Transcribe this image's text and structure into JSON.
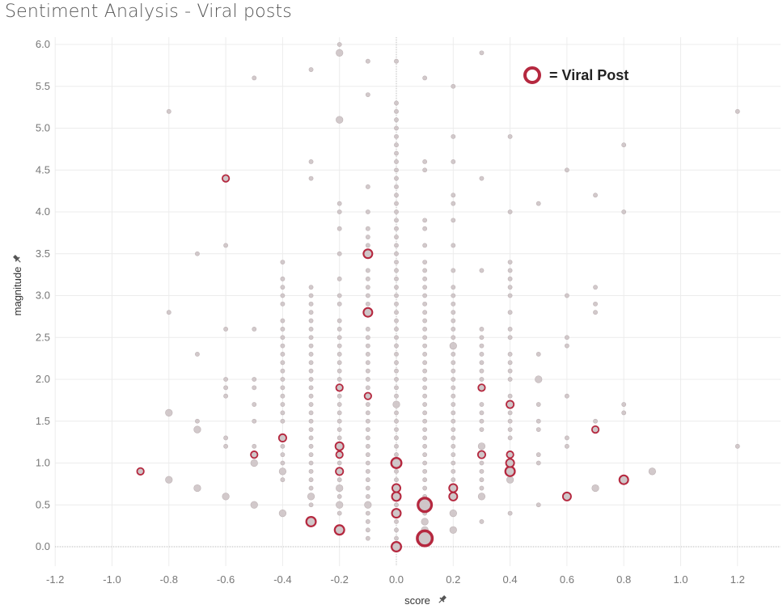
{
  "title": "Sentiment Analysis - Viral posts",
  "chart_data": {
    "type": "scatter",
    "title": "Sentiment Analysis - Viral posts",
    "xlabel": "score",
    "ylabel": "magnitude",
    "xlim": [
      -1.25,
      1.35
    ],
    "ylim": [
      -0.05,
      6.05
    ],
    "x_ticks": [
      "-1.2",
      "-1.0",
      "-0.8",
      "-0.6",
      "-0.4",
      "-0.2",
      "0.0",
      "0.2",
      "0.4",
      "0.6",
      "0.8",
      "1.0",
      "1.2"
    ],
    "y_ticks": [
      "0.0",
      "0.5",
      "1.0",
      "1.5",
      "2.0",
      "2.5",
      "3.0",
      "3.5",
      "4.0",
      "4.5",
      "5.0",
      "5.5",
      "6.0"
    ],
    "grid": true,
    "legend": {
      "placement": "top-right",
      "label": "= Viral Post"
    },
    "colors": {
      "regular": "#cdc3c5",
      "viral": "#b5283f",
      "grid": "#ececec",
      "zero_line": "#bcbcbc"
    },
    "columns": [
      {
        "x": -0.9,
        "y": [
          0.9
        ]
      },
      {
        "x": -0.8,
        "y": [
          0.8,
          1.6,
          2.8,
          5.2
        ]
      },
      {
        "x": -0.7,
        "y": [
          0.7,
          1.4,
          1.5,
          2.3,
          3.5
        ]
      },
      {
        "x": -0.6,
        "y": [
          0.6,
          1.2,
          1.3,
          1.8,
          1.9,
          2.0,
          2.6,
          3.6,
          4.4
        ]
      },
      {
        "x": -0.5,
        "y": [
          0.5,
          1.0,
          1.1,
          1.2,
          1.5,
          1.7,
          1.9,
          2.0,
          2.6,
          5.6
        ]
      },
      {
        "x": -0.4,
        "y": [
          0.4,
          0.8,
          0.9,
          1.0,
          1.1,
          1.2,
          1.3,
          1.5,
          1.6,
          1.7,
          1.8,
          1.9,
          2.0,
          2.1,
          2.2,
          2.3,
          2.4,
          2.5,
          2.6,
          2.7,
          2.9,
          3.0,
          3.1,
          3.2,
          3.4
        ]
      },
      {
        "x": -0.3,
        "y": [
          0.3,
          0.5,
          0.6,
          0.7,
          0.8,
          0.9,
          1.0,
          1.1,
          1.2,
          1.3,
          1.4,
          1.5,
          1.6,
          1.7,
          1.8,
          1.9,
          2.0,
          2.1,
          2.2,
          2.3,
          2.4,
          2.5,
          2.6,
          2.7,
          2.8,
          2.9,
          3.0,
          3.1,
          4.4,
          4.6,
          5.7
        ]
      },
      {
        "x": -0.2,
        "y": [
          0.2,
          0.4,
          0.5,
          0.6,
          0.7,
          0.8,
          0.9,
          1.0,
          1.1,
          1.2,
          1.3,
          1.4,
          1.5,
          1.6,
          1.7,
          1.8,
          1.9,
          2.0,
          2.1,
          2.2,
          2.3,
          2.4,
          2.5,
          2.6,
          2.7,
          2.9,
          3.0,
          3.2,
          3.5,
          3.8,
          4.0,
          4.1,
          5.1,
          5.9,
          6.0
        ]
      },
      {
        "x": -0.1,
        "y": [
          0.1,
          0.2,
          0.3,
          0.4,
          0.5,
          0.6,
          0.7,
          0.8,
          0.9,
          1.0,
          1.1,
          1.2,
          1.3,
          1.4,
          1.5,
          1.6,
          1.7,
          1.8,
          1.9,
          2.0,
          2.1,
          2.2,
          2.3,
          2.4,
          2.5,
          2.6,
          2.8,
          2.9,
          3.0,
          3.1,
          3.2,
          3.3,
          3.5,
          3.6,
          3.7,
          3.8,
          4.0,
          4.3,
          5.4,
          5.8
        ]
      },
      {
        "x": 0.0,
        "y": [
          0.0,
          0.1,
          0.2,
          0.3,
          0.4,
          0.5,
          0.6,
          0.7,
          0.8,
          0.9,
          1.0,
          1.1,
          1.2,
          1.3,
          1.4,
          1.5,
          1.6,
          1.7,
          1.8,
          1.9,
          2.0,
          2.1,
          2.2,
          2.3,
          2.4,
          2.5,
          2.6,
          2.7,
          2.8,
          2.9,
          3.0,
          3.1,
          3.2,
          3.3,
          3.4,
          3.5,
          3.6,
          3.7,
          3.8,
          3.9,
          4.0,
          4.1,
          4.2,
          4.3,
          4.4,
          4.5,
          4.6,
          4.7,
          4.8,
          4.9,
          5.0,
          5.1,
          5.2,
          5.3,
          5.8
        ]
      },
      {
        "x": 0.1,
        "y": [
          0.1,
          0.2,
          0.3,
          0.4,
          0.5,
          0.6,
          0.7,
          0.8,
          0.9,
          1.0,
          1.1,
          1.2,
          1.3,
          1.4,
          1.5,
          1.6,
          1.7,
          1.8,
          1.9,
          2.0,
          2.1,
          2.2,
          2.3,
          2.4,
          2.5,
          2.6,
          2.7,
          2.8,
          2.9,
          3.0,
          3.1,
          3.2,
          3.3,
          3.4,
          3.6,
          3.8,
          3.9,
          4.5,
          4.6,
          5.6
        ]
      },
      {
        "x": 0.2,
        "y": [
          0.2,
          0.4,
          0.6,
          0.7,
          0.8,
          0.9,
          1.0,
          1.1,
          1.2,
          1.3,
          1.4,
          1.5,
          1.6,
          1.7,
          1.8,
          1.9,
          2.0,
          2.1,
          2.2,
          2.3,
          2.4,
          2.5,
          2.6,
          2.7,
          2.8,
          2.9,
          3.0,
          3.1,
          3.3,
          3.6,
          3.9,
          4.1,
          4.2,
          4.6,
          4.9,
          5.5
        ]
      },
      {
        "x": 0.3,
        "y": [
          0.3,
          0.6,
          0.7,
          0.8,
          0.9,
          1.0,
          1.1,
          1.2,
          1.4,
          1.5,
          1.6,
          1.7,
          1.9,
          2.0,
          2.1,
          2.2,
          2.3,
          2.4,
          2.5,
          2.6,
          3.3,
          4.4,
          5.9
        ]
      },
      {
        "x": 0.4,
        "y": [
          0.4,
          0.8,
          0.9,
          1.0,
          1.1,
          1.3,
          1.4,
          1.5,
          1.6,
          1.7,
          1.8,
          2.0,
          2.1,
          2.2,
          2.3,
          2.5,
          2.6,
          2.8,
          3.0,
          3.1,
          3.2,
          3.3,
          3.4,
          4.0,
          4.9
        ]
      },
      {
        "x": 0.5,
        "y": [
          0.5,
          1.0,
          1.1,
          1.4,
          1.5,
          1.7,
          2.0,
          2.3,
          4.1
        ]
      },
      {
        "x": 0.6,
        "y": [
          0.6,
          1.2,
          1.3,
          1.8,
          2.4,
          2.5,
          3.0,
          4.5
        ]
      },
      {
        "x": 0.7,
        "y": [
          0.7,
          1.4,
          1.5,
          2.8,
          2.9,
          3.1,
          4.2
        ]
      },
      {
        "x": 0.8,
        "y": [
          0.8,
          1.6,
          1.7,
          4.0,
          4.8
        ]
      },
      {
        "x": 0.9,
        "y": [
          0.9
        ]
      },
      {
        "x": 1.2,
        "y": [
          1.2,
          5.2
        ]
      }
    ],
    "large_points": [
      {
        "x": -0.8,
        "y": 1.6
      },
      {
        "x": -0.8,
        "y": 0.8
      },
      {
        "x": -0.7,
        "y": 0.7
      },
      {
        "x": -0.7,
        "y": 1.4
      },
      {
        "x": -0.6,
        "y": 0.6
      },
      {
        "x": -0.5,
        "y": 0.5
      },
      {
        "x": -0.5,
        "y": 1.0
      },
      {
        "x": -0.4,
        "y": 0.4
      },
      {
        "x": -0.4,
        "y": 0.9
      },
      {
        "x": -0.3,
        "y": 0.6
      },
      {
        "x": -0.2,
        "y": 0.7
      },
      {
        "x": -0.2,
        "y": 0.5
      },
      {
        "x": -0.1,
        "y": 0.5
      },
      {
        "x": 0.0,
        "y": 1.7
      },
      {
        "x": 0.1,
        "y": 0.3
      },
      {
        "x": 0.1,
        "y": 0.2
      },
      {
        "x": 0.2,
        "y": 0.2
      },
      {
        "x": 0.2,
        "y": 0.4
      },
      {
        "x": 0.2,
        "y": 2.4
      },
      {
        "x": 0.3,
        "y": 0.6
      },
      {
        "x": 0.3,
        "y": 1.2
      },
      {
        "x": 0.4,
        "y": 0.8
      },
      {
        "x": 0.5,
        "y": 2.0
      },
      {
        "x": 0.7,
        "y": 0.7
      },
      {
        "x": 0.9,
        "y": 0.9
      },
      {
        "x": -0.2,
        "y": 5.9
      },
      {
        "x": -0.2,
        "y": 5.1
      }
    ],
    "viral_posts": [
      {
        "x": -0.9,
        "y": 0.9,
        "size": 1.0
      },
      {
        "x": -0.6,
        "y": 4.4,
        "size": 1.0
      },
      {
        "x": -0.5,
        "y": 1.1,
        "size": 1.0
      },
      {
        "x": -0.4,
        "y": 1.3,
        "size": 1.1
      },
      {
        "x": -0.3,
        "y": 0.3,
        "size": 1.4
      },
      {
        "x": -0.2,
        "y": 0.2,
        "size": 1.4
      },
      {
        "x": -0.2,
        "y": 0.9,
        "size": 1.1
      },
      {
        "x": -0.2,
        "y": 1.1,
        "size": 1.0
      },
      {
        "x": -0.2,
        "y": 1.2,
        "size": 1.2
      },
      {
        "x": -0.2,
        "y": 1.9,
        "size": 1.0
      },
      {
        "x": -0.1,
        "y": 1.8,
        "size": 1.0
      },
      {
        "x": -0.1,
        "y": 2.8,
        "size": 1.3
      },
      {
        "x": -0.1,
        "y": 3.5,
        "size": 1.3
      },
      {
        "x": 0.0,
        "y": 0.0,
        "size": 1.4
      },
      {
        "x": 0.0,
        "y": 0.4,
        "size": 1.3
      },
      {
        "x": 0.0,
        "y": 0.6,
        "size": 1.3
      },
      {
        "x": 0.0,
        "y": 0.7,
        "size": 1.2
      },
      {
        "x": 0.0,
        "y": 1.0,
        "size": 1.5
      },
      {
        "x": 0.1,
        "y": 0.1,
        "size": 2.2
      },
      {
        "x": 0.1,
        "y": 0.5,
        "size": 2.0
      },
      {
        "x": 0.2,
        "y": 0.6,
        "size": 1.2
      },
      {
        "x": 0.2,
        "y": 0.7,
        "size": 1.2
      },
      {
        "x": 0.3,
        "y": 1.1,
        "size": 1.1
      },
      {
        "x": 0.3,
        "y": 1.9,
        "size": 1.0
      },
      {
        "x": 0.4,
        "y": 0.9,
        "size": 1.4
      },
      {
        "x": 0.4,
        "y": 1.0,
        "size": 1.2
      },
      {
        "x": 0.4,
        "y": 1.1,
        "size": 1.0
      },
      {
        "x": 0.4,
        "y": 1.7,
        "size": 1.1
      },
      {
        "x": 0.6,
        "y": 0.6,
        "size": 1.2
      },
      {
        "x": 0.7,
        "y": 1.4,
        "size": 1.0
      },
      {
        "x": 0.8,
        "y": 0.8,
        "size": 1.3
      }
    ]
  }
}
